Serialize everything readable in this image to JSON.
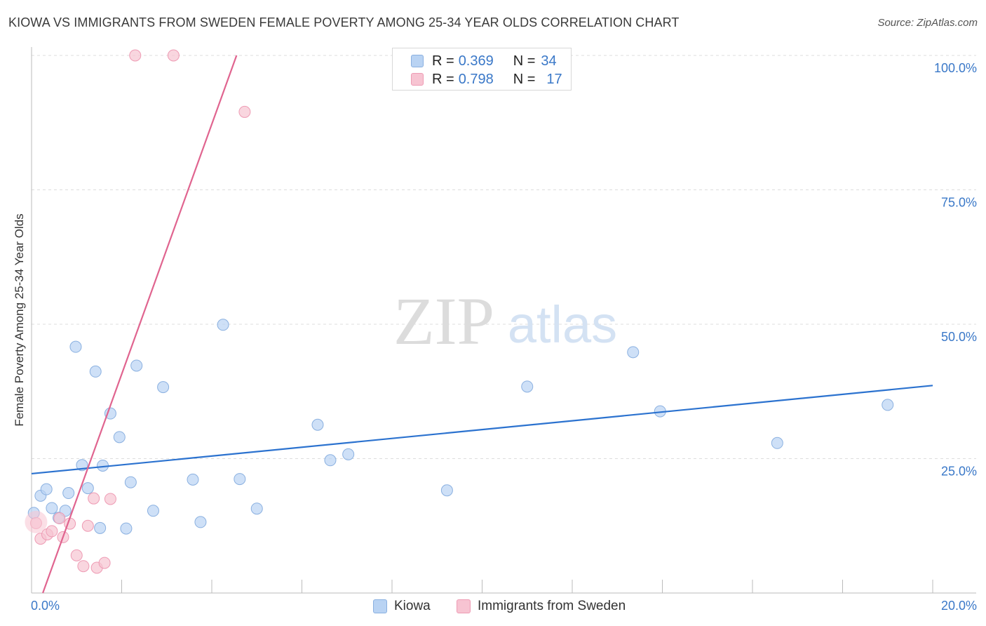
{
  "header": {
    "title": "KIOWA VS IMMIGRANTS FROM SWEDEN FEMALE POVERTY AMONG 25-34 YEAR OLDS CORRELATION CHART",
    "source": "Source: ZipAtlas.com"
  },
  "watermark": {
    "zip": "ZIP",
    "atlas": "atlas"
  },
  "colors": {
    "kiowa_fill": "#b9d3f3",
    "kiowa_stroke": "#8ab0e0",
    "kiowa_line": "#2b72cf",
    "sweden_fill": "#f7c4d2",
    "sweden_stroke": "#ee9bb4",
    "sweden_line": "#e0648f",
    "tick_label": "#3a78c8",
    "grid": "#dddddd"
  },
  "legend": {
    "rows": [
      {
        "r_label": "R =",
        "r_value": "0.369",
        "n_label": "N =",
        "n_value": "34"
      },
      {
        "r_label": "R =",
        "r_value": "0.798",
        "n_label": "N =",
        "n_value": "17"
      }
    ]
  },
  "chart_data": {
    "type": "scatter",
    "title": "KIOWA VS IMMIGRANTS FROM SWEDEN FEMALE POVERTY AMONG 25-34 YEAR OLDS CORRELATION CHART",
    "xlabel": "",
    "ylabel": "Female Poverty Among 25-34 Year Olds",
    "xlim": [
      0,
      20
    ],
    "ylim": [
      0,
      100
    ],
    "x_tick_labels": [
      "0.0%",
      "20.0%"
    ],
    "y_ticks": [
      25,
      50,
      75,
      100
    ],
    "y_tick_labels": [
      "25.0%",
      "50.0%",
      "75.0%",
      "100.0%"
    ],
    "grid": true,
    "series": [
      {
        "name": "Kiowa",
        "r": 0.369,
        "n": 34,
        "trendline": {
          "x": [
            0,
            20
          ],
          "y": [
            22.2,
            38.6
          ]
        },
        "points": [
          {
            "x": 0.05,
            "y": 14.9
          },
          {
            "x": 0.2,
            "y": 18.1
          },
          {
            "x": 0.33,
            "y": 19.3
          },
          {
            "x": 0.45,
            "y": 15.8
          },
          {
            "x": 0.6,
            "y": 14.0
          },
          {
            "x": 0.75,
            "y": 15.3
          },
          {
            "x": 0.82,
            "y": 18.6
          },
          {
            "x": 0.98,
            "y": 45.8
          },
          {
            "x": 1.12,
            "y": 23.8
          },
          {
            "x": 1.25,
            "y": 19.5
          },
          {
            "x": 1.42,
            "y": 41.2
          },
          {
            "x": 1.52,
            "y": 12.1
          },
          {
            "x": 1.58,
            "y": 23.7
          },
          {
            "x": 1.75,
            "y": 33.4
          },
          {
            "x": 1.95,
            "y": 29.0
          },
          {
            "x": 2.1,
            "y": 12.0
          },
          {
            "x": 2.2,
            "y": 20.6
          },
          {
            "x": 2.33,
            "y": 42.3
          },
          {
            "x": 2.7,
            "y": 15.3
          },
          {
            "x": 2.92,
            "y": 38.3
          },
          {
            "x": 3.58,
            "y": 21.1
          },
          {
            "x": 3.75,
            "y": 13.2
          },
          {
            "x": 4.25,
            "y": 49.9
          },
          {
            "x": 4.62,
            "y": 21.2
          },
          {
            "x": 5.0,
            "y": 15.7
          },
          {
            "x": 6.35,
            "y": 31.3
          },
          {
            "x": 6.63,
            "y": 24.7
          },
          {
            "x": 7.03,
            "y": 25.8
          },
          {
            "x": 9.22,
            "y": 19.1
          },
          {
            "x": 11.0,
            "y": 38.4
          },
          {
            "x": 13.35,
            "y": 44.8
          },
          {
            "x": 13.95,
            "y": 33.8
          },
          {
            "x": 16.55,
            "y": 27.9
          },
          {
            "x": 19.0,
            "y": 35.0
          }
        ]
      },
      {
        "name": "Immigrants from Sweden",
        "r": 0.798,
        "n": 17,
        "trendline": {
          "x": [
            0.25,
            4.55
          ],
          "y": [
            0.0,
            100.0
          ]
        },
        "points": [
          {
            "x": 0.1,
            "y": 13.0
          },
          {
            "x": 0.2,
            "y": 10.1
          },
          {
            "x": 0.35,
            "y": 10.9
          },
          {
            "x": 0.45,
            "y": 11.5
          },
          {
            "x": 0.62,
            "y": 13.9
          },
          {
            "x": 0.7,
            "y": 10.4
          },
          {
            "x": 0.85,
            "y": 12.9
          },
          {
            "x": 1.0,
            "y": 7.0
          },
          {
            "x": 1.15,
            "y": 5.0
          },
          {
            "x": 1.25,
            "y": 12.5
          },
          {
            "x": 1.38,
            "y": 17.6
          },
          {
            "x": 1.45,
            "y": 4.7
          },
          {
            "x": 1.62,
            "y": 5.6
          },
          {
            "x": 1.75,
            "y": 17.5
          },
          {
            "x": 2.3,
            "y": 100.0
          },
          {
            "x": 3.15,
            "y": 100.0
          },
          {
            "x": 4.73,
            "y": 89.5
          }
        ]
      }
    ]
  },
  "bottom_legend": {
    "items": [
      {
        "label": "Kiowa"
      },
      {
        "label": "Immigrants from Sweden"
      }
    ]
  }
}
